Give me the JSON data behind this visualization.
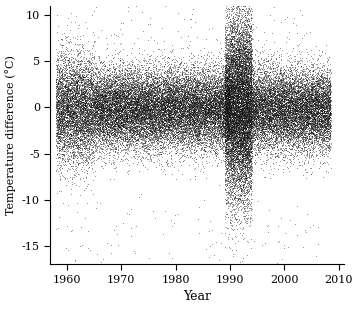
{
  "title": "",
  "xlabel": "Year",
  "ylabel": "Temperature difference (°C)",
  "xlim": [
    1957,
    2011
  ],
  "ylim": [
    -17,
    11
  ],
  "xticks": [
    1960,
    1970,
    1980,
    1990,
    2000,
    2010
  ],
  "yticks": [
    -15,
    -10,
    -5,
    0,
    5,
    10
  ],
  "n_points": 40000,
  "x_start": 1958.0,
  "x_end": 2008.5,
  "seed": 42,
  "dot_color": "#111111",
  "dot_size": 0.3,
  "dot_alpha": 0.55,
  "background_color": "#ffffff",
  "spread_base": 2.2,
  "spread_spike_start": 1990,
  "spread_spike_end": 1994,
  "spread_spike_factor": 2.2,
  "spread_early_end": 1965,
  "spread_early_factor": 1.3
}
